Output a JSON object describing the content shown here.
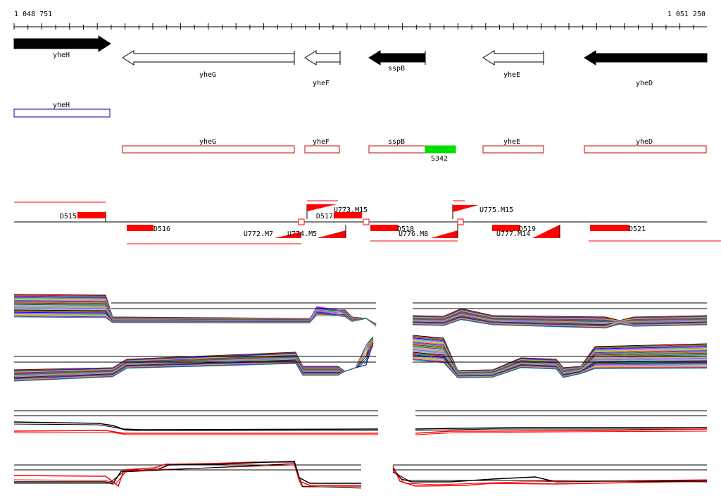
{
  "ruler": {
    "start_label": "1 048 751",
    "end_label": "1 051 250"
  },
  "genes": [
    {
      "name": "yheH",
      "dir": "right",
      "fill": "filled"
    },
    {
      "name": "yheG",
      "dir": "left",
      "fill": "open"
    },
    {
      "name": "yheF",
      "dir": "left",
      "fill": "open"
    },
    {
      "name": "sspB",
      "dir": "left",
      "fill": "filled"
    },
    {
      "name": "yheE",
      "dir": "left",
      "fill": "open"
    },
    {
      "name": "yheD",
      "dir": "left",
      "fill": "filled"
    }
  ],
  "annotation_boxes": [
    {
      "name": "yheH",
      "color": "#0000aa"
    },
    {
      "name": "yheG",
      "color": "#cc0000"
    },
    {
      "name": "yheF",
      "color": "#cc0000"
    },
    {
      "name": "sspB",
      "color": "#cc0000"
    },
    {
      "name": "yheE",
      "color": "#cc0000"
    },
    {
      "name": "yheD",
      "color": "#cc0000"
    }
  ],
  "srna": {
    "name": "S342",
    "color": "#00dd00"
  },
  "segments_top": [
    {
      "name": "D515"
    },
    {
      "name": "D517"
    },
    {
      "name": "U773.M15"
    },
    {
      "name": "U775.M15"
    }
  ],
  "segments_bottom": [
    {
      "name": "D516"
    },
    {
      "name": "U772.M7"
    },
    {
      "name": "U774.M5"
    },
    {
      "name": "D518"
    },
    {
      "name": "U776.M8"
    },
    {
      "name": "D519"
    },
    {
      "name": "U777.M14"
    },
    {
      "name": "D521"
    }
  ],
  "colors": {
    "feature_red": "#ff0000",
    "box_red": "#cc0000",
    "box_blue": "#0000aa",
    "srna_green": "#00dd00"
  }
}
